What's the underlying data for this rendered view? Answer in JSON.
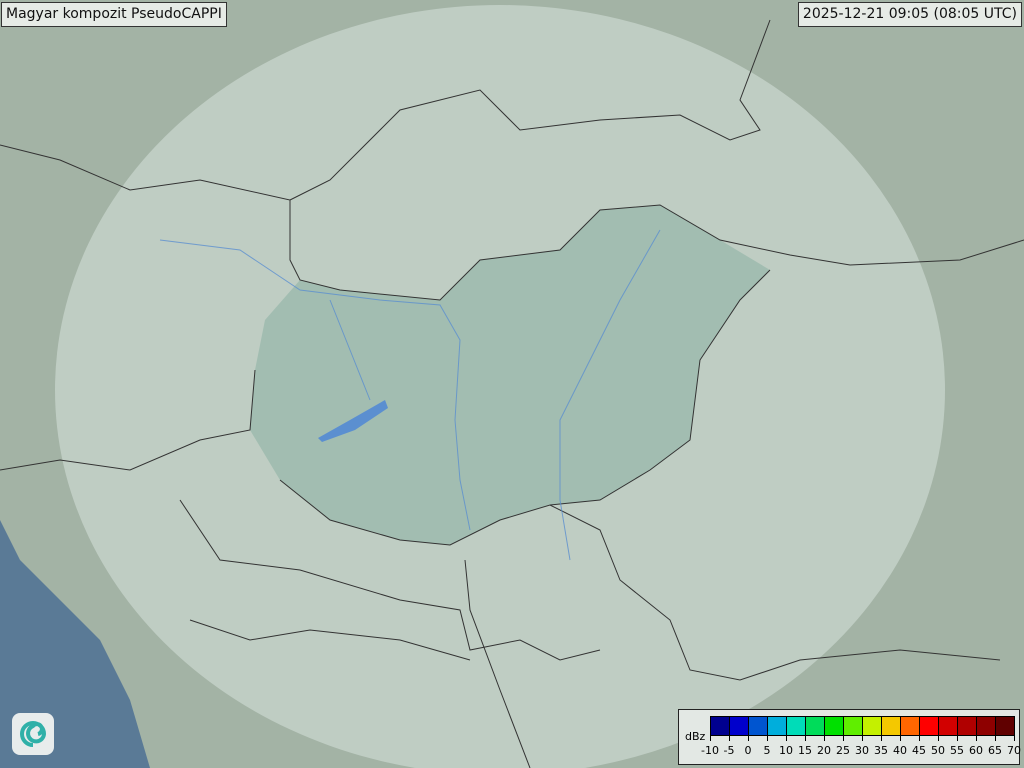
{
  "title": "Magyar kompozit  PseudoCAPPI",
  "timestamp": "2025-12-21 09:05 (08:05 UTC)",
  "logo": {
    "icon": "spiral-logo-icon"
  },
  "legend": {
    "unit": "dBz",
    "labels": [
      "-10",
      "-5",
      "0",
      "5",
      "10",
      "15",
      "20",
      "25",
      "30",
      "35",
      "40",
      "45",
      "50",
      "55",
      "60",
      "65",
      "70"
    ],
    "colors": [
      "#00008f",
      "#0000cc",
      "#0055d0",
      "#00aedc",
      "#00dcb8",
      "#00dc5a",
      "#00e000",
      "#60ee00",
      "#c4f000",
      "#f4c800",
      "#ff6600",
      "#ff0000",
      "#d20000",
      "#b00000",
      "#8e0000",
      "#600000"
    ]
  },
  "colors": {
    "land": "#a3b5a6",
    "sea": "#5a7a96",
    "coverage": "#c9d6cf",
    "hungary": "#9dbcb0"
  }
}
